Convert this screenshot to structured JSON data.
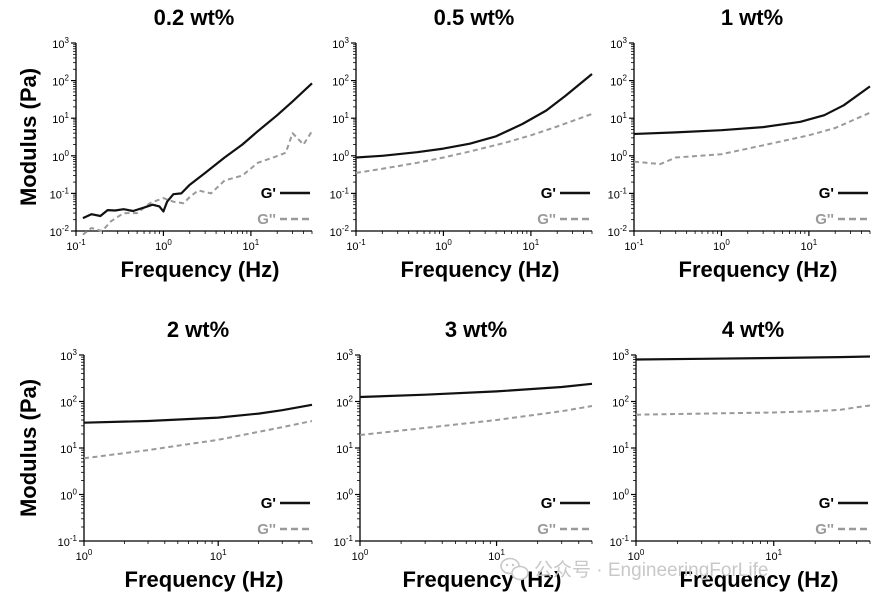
{
  "chart_data": [
    {
      "type": "line",
      "title": "0.2 wt%",
      "xlabel": "Frequency (Hz)",
      "ylabel": "Modulus (Pa)",
      "xscale": "log",
      "yscale": "log",
      "xlim": [
        0.1,
        50
      ],
      "ylim": [
        0.01,
        1000
      ],
      "xticks": [
        "10^-1",
        "10^0",
        "10^1"
      ],
      "yticks": [
        "10^-2",
        "10^-1",
        "10^0",
        "10^1",
        "10^2",
        "10^3"
      ],
      "legend": [
        "G'",
        "G''"
      ],
      "legend_position": "bottom-right",
      "series": [
        {
          "name": "G'",
          "style": "solid-black",
          "x": [
            0.12,
            0.15,
            0.19,
            0.23,
            0.28,
            0.35,
            0.45,
            0.6,
            0.75,
            0.9,
            1.0,
            1.1,
            1.3,
            1.6,
            2.0,
            3.0,
            5.0,
            8.0,
            12,
            20,
            30,
            50
          ],
          "y": [
            0.022,
            0.028,
            0.025,
            0.036,
            0.035,
            0.038,
            0.034,
            0.042,
            0.05,
            0.045,
            0.033,
            0.06,
            0.095,
            0.1,
            0.17,
            0.35,
            0.9,
            2.0,
            4.5,
            12,
            28,
            85
          ]
        },
        {
          "name": "G''",
          "style": "dashed-gray",
          "x": [
            0.12,
            0.15,
            0.2,
            0.25,
            0.35,
            0.5,
            0.7,
            1.0,
            1.3,
            1.7,
            2.0,
            2.5,
            3.5,
            5.0,
            8.0,
            12,
            18,
            25,
            30,
            40,
            50
          ],
          "y": [
            0.008,
            0.012,
            0.01,
            0.018,
            0.03,
            0.03,
            0.055,
            0.075,
            0.06,
            0.055,
            0.08,
            0.12,
            0.1,
            0.22,
            0.3,
            0.65,
            0.9,
            1.2,
            4.0,
            2.0,
            4.5
          ]
        }
      ]
    },
    {
      "type": "line",
      "title": "0.5 wt%",
      "xlabel": "Frequency (Hz)",
      "ylabel": "",
      "xscale": "log",
      "yscale": "log",
      "xlim": [
        0.1,
        50
      ],
      "ylim": [
        0.01,
        1000
      ],
      "xticks": [
        "10^-1",
        "10^0",
        "10^1"
      ],
      "yticks": [
        "10^-2",
        "10^-1",
        "10^0",
        "10^1",
        "10^2",
        "10^3"
      ],
      "legend": [
        "G'",
        "G''"
      ],
      "legend_position": "bottom-right",
      "series": [
        {
          "name": "G'",
          "style": "solid-black",
          "x": [
            0.1,
            0.2,
            0.5,
            1.0,
            2.0,
            4.0,
            8.0,
            15,
            25,
            50
          ],
          "y": [
            0.9,
            1.0,
            1.25,
            1.55,
            2.1,
            3.3,
            7.0,
            16,
            40,
            150
          ]
        },
        {
          "name": "G''",
          "style": "dashed-gray",
          "x": [
            0.1,
            0.2,
            0.5,
            1.0,
            2.0,
            5.0,
            10,
            20,
            50
          ],
          "y": [
            0.35,
            0.45,
            0.65,
            0.9,
            1.3,
            2.2,
            3.5,
            6.0,
            13
          ]
        }
      ]
    },
    {
      "type": "line",
      "title": "1 wt%",
      "xlabel": "Frequency (Hz)",
      "ylabel": "",
      "xscale": "log",
      "yscale": "log",
      "xlim": [
        0.1,
        50
      ],
      "ylim": [
        0.01,
        1000
      ],
      "xticks": [
        "10^-1",
        "10^0",
        "10^1"
      ],
      "yticks": [
        "10^-2",
        "10^-1",
        "10^0",
        "10^1",
        "10^2",
        "10^3"
      ],
      "legend": [
        "G'",
        "G''"
      ],
      "legend_position": "bottom-right",
      "series": [
        {
          "name": "G'",
          "style": "solid-black",
          "x": [
            0.1,
            0.3,
            1.0,
            3.0,
            8.0,
            15,
            25,
            50
          ],
          "y": [
            3.8,
            4.2,
            4.8,
            5.8,
            8.0,
            12,
            22,
            70
          ]
        },
        {
          "name": "G''",
          "style": "dashed-gray",
          "x": [
            0.1,
            0.2,
            0.3,
            1.0,
            3.0,
            10,
            20,
            50
          ],
          "y": [
            0.7,
            0.6,
            0.9,
            1.1,
            1.9,
            3.5,
            5.5,
            14
          ]
        }
      ]
    },
    {
      "type": "line",
      "title": "2 wt%",
      "xlabel": "Frequency (Hz)",
      "ylabel": "Modulus (Pa)",
      "xscale": "log",
      "yscale": "log",
      "xlim": [
        1,
        50
      ],
      "ylim": [
        0.1,
        1000
      ],
      "xticks": [
        "10^0",
        "10^1"
      ],
      "yticks": [
        "10^-1",
        "10^0",
        "10^1",
        "10^2",
        "10^3"
      ],
      "legend": [
        "G'",
        "G''"
      ],
      "legend_position": "bottom-right",
      "series": [
        {
          "name": "G'",
          "style": "solid-black",
          "x": [
            1,
            3,
            10,
            20,
            30,
            50
          ],
          "y": [
            35,
            38,
            45,
            55,
            65,
            85
          ]
        },
        {
          "name": "G''",
          "style": "dashed-gray",
          "x": [
            1,
            3,
            10,
            30,
            50
          ],
          "y": [
            6,
            9,
            15,
            28,
            38
          ]
        }
      ]
    },
    {
      "type": "line",
      "title": "3 wt%",
      "xlabel": "Frequency (Hz)",
      "ylabel": "",
      "xscale": "log",
      "yscale": "log",
      "xlim": [
        1,
        50
      ],
      "ylim": [
        0.1,
        1000
      ],
      "xticks": [
        "10^0",
        "10^1"
      ],
      "yticks": [
        "10^-1",
        "10^0",
        "10^1",
        "10^2",
        "10^3"
      ],
      "legend": [
        "G'",
        "G''"
      ],
      "legend_position": "bottom-right",
      "series": [
        {
          "name": "G'",
          "style": "solid-black",
          "x": [
            1,
            3,
            10,
            30,
            50
          ],
          "y": [
            125,
            140,
            165,
            205,
            240
          ]
        },
        {
          "name": "G''",
          "style": "dashed-gray",
          "x": [
            1,
            3,
            10,
            30,
            50
          ],
          "y": [
            19,
            27,
            40,
            62,
            80
          ]
        }
      ]
    },
    {
      "type": "line",
      "title": "4 wt%",
      "xlabel": "Frequency (Hz)",
      "ylabel": "",
      "xscale": "log",
      "yscale": "log",
      "xlim": [
        1,
        50
      ],
      "ylim": [
        0.1,
        1000
      ],
      "xticks": [
        "10^0",
        "10^1"
      ],
      "yticks": [
        "10^-1",
        "10^0",
        "10^1",
        "10^2",
        "10^3"
      ],
      "legend": [
        "G'",
        "G''"
      ],
      "legend_position": "bottom-right",
      "series": [
        {
          "name": "G'",
          "style": "solid-black",
          "x": [
            1,
            3,
            10,
            30,
            50
          ],
          "y": [
            800,
            830,
            860,
            900,
            930
          ]
        },
        {
          "name": "G''",
          "style": "dashed-gray",
          "x": [
            1,
            3,
            10,
            20,
            30,
            40,
            50
          ],
          "y": [
            52,
            55,
            58,
            62,
            66,
            75,
            82
          ]
        }
      ]
    }
  ],
  "colors": {
    "gprime": "#111111",
    "gdoubleprime": "#9a9a9a",
    "axis": "#000000"
  },
  "watermark": {
    "icon": "wechat-icon",
    "text": "公众号 · EngineeringForLife"
  }
}
